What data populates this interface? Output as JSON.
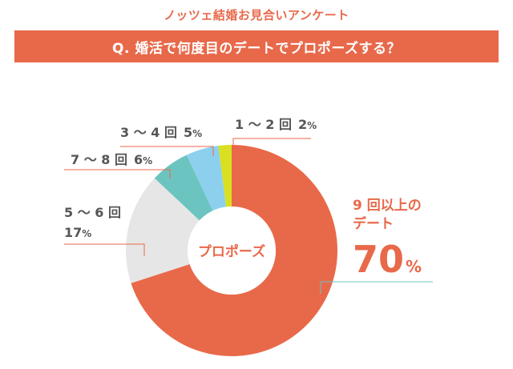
{
  "header": {
    "survey_title": "ノッツェ結婚お見合いアンケート",
    "question": "Q. 婚活で何度目のデートでプロポーズする？"
  },
  "chart_data": {
    "type": "pie",
    "title": "",
    "center_label": "プロポーズ",
    "slices": [
      {
        "label": "9回以上のデート",
        "value": 70,
        "color": "#e8694a"
      },
      {
        "label": "5～6回",
        "value": 17,
        "color": "#e6e6e6"
      },
      {
        "label": "7～8回",
        "value": 6,
        "color": "#6cc4c0"
      },
      {
        "label": "3～4回",
        "value": 5,
        "color": "#8dd0ee"
      },
      {
        "label": "1～2回",
        "value": 2,
        "color": "#d9e021"
      }
    ],
    "annotations": {
      "s1_2": {
        "text": "1 ～ 2 回",
        "pct": "2",
        "unit": "%"
      },
      "s3_4": {
        "text": "3 ～ 4 回",
        "pct": "5",
        "unit": "%"
      },
      "s7_8": {
        "text": "7 ～ 8 回",
        "pct": "6",
        "unit": "%"
      },
      "s5_6": {
        "line1": "5 ～ 6 回",
        "pct": "17",
        "unit": "%"
      },
      "s9": {
        "line1": "9 回以上の",
        "line2": "デート",
        "pct": "70",
        "unit": "%"
      }
    }
  }
}
